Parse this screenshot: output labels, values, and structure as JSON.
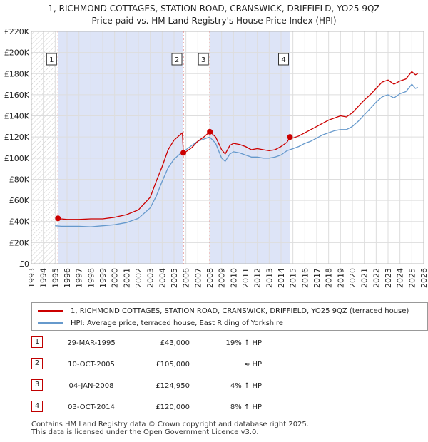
{
  "page_title": {
    "line1": "1, RICHMOND COTTAGES, STATION ROAD, CRANSWICK, DRIFFIELD, YO25 9QZ",
    "line2": "Price paid vs. HM Land Registry's House Price Index (HPI)"
  },
  "legend": {
    "property": "1, RICHMOND COTTAGES, STATION ROAD, CRANSWICK, DRIFFIELD, YO25 9QZ (terraced house)",
    "hpi": "HPI: Average price, terraced house, East Riding of Yorkshire"
  },
  "transactions": [
    {
      "num": "1",
      "date": "29-MAR-1995",
      "price": "£43,000",
      "hpi": "19% ↑ HPI"
    },
    {
      "num": "2",
      "date": "10-OCT-2005",
      "price": "£105,000",
      "hpi": "≈ HPI"
    },
    {
      "num": "3",
      "date": "04-JAN-2008",
      "price": "£124,950",
      "hpi": "4% ↑ HPI"
    },
    {
      "num": "4",
      "date": "03-OCT-2014",
      "price": "£120,000",
      "hpi": "8% ↑ HPI"
    }
  ],
  "footer": {
    "line1": "Contains HM Land Registry data © Crown copyright and database right 2025.",
    "line2": "This data is licensed under the Open Government Licence v3.0."
  },
  "colors": {
    "property": "#cc0000",
    "hpi": "#6699cc",
    "shade": "#dde4f7",
    "grid": "#dddddd",
    "marker": "#cc0000"
  },
  "chart_data": {
    "type": "line",
    "xlim": [
      1993,
      2026
    ],
    "ylim": [
      0,
      220000
    ],
    "y_ticks": [
      {
        "v": 0,
        "label": "£0"
      },
      {
        "v": 20000,
        "label": "£20K"
      },
      {
        "v": 40000,
        "label": "£40K"
      },
      {
        "v": 60000,
        "label": "£60K"
      },
      {
        "v": 80000,
        "label": "£80K"
      },
      {
        "v": 100000,
        "label": "£100K"
      },
      {
        "v": 120000,
        "label": "£120K"
      },
      {
        "v": 140000,
        "label": "£140K"
      },
      {
        "v": 160000,
        "label": "£160K"
      },
      {
        "v": 180000,
        "label": "£180K"
      },
      {
        "v": 200000,
        "label": "£200K"
      },
      {
        "v": 220000,
        "label": "£220K"
      }
    ],
    "x_ticks": [
      "1993",
      "1994",
      "1995",
      "1996",
      "1997",
      "1998",
      "1999",
      "2000",
      "2001",
      "2002",
      "2003",
      "2004",
      "2005",
      "2006",
      "2007",
      "2008",
      "2009",
      "2010",
      "2011",
      "2012",
      "2013",
      "2014",
      "2015",
      "2016",
      "2017",
      "2018",
      "2019",
      "2020",
      "2021",
      "2022",
      "2023",
      "2024",
      "2025",
      "2026"
    ],
    "sales": [
      {
        "label": "1",
        "x": 1995.24,
        "y": 43000
      },
      {
        "label": "2",
        "x": 2005.78,
        "y": 105000
      },
      {
        "label": "3",
        "x": 2008.01,
        "y": 124950
      },
      {
        "label": "4",
        "x": 2014.75,
        "y": 120000
      }
    ],
    "shaded_ranges": [
      [
        1995.24,
        2005.78
      ],
      [
        2008.01,
        2014.75
      ]
    ],
    "series": [
      {
        "name": "1, RICHMOND COTTAGES, STATION ROAD, CRANSWICK, DRIFFIELD, YO25 9QZ (terraced house)",
        "points": [
          [
            1995.24,
            43000
          ],
          [
            1995.5,
            42500
          ],
          [
            1996,
            42000
          ],
          [
            1997,
            42000
          ],
          [
            1998,
            42500
          ],
          [
            1999,
            42500
          ],
          [
            2000,
            44000
          ],
          [
            2001,
            46500
          ],
          [
            2002,
            51000
          ],
          [
            2003,
            63000
          ],
          [
            2003.5,
            78000
          ],
          [
            2004,
            92000
          ],
          [
            2004.5,
            108000
          ],
          [
            2005,
            117000
          ],
          [
            2005.5,
            122000
          ],
          [
            2005.7,
            124000
          ],
          [
            2005.78,
            105000
          ],
          [
            2006,
            106000
          ],
          [
            2006.5,
            110000
          ],
          [
            2007,
            116000
          ],
          [
            2007.5,
            120000
          ],
          [
            2008.01,
            124950
          ],
          [
            2008.5,
            120000
          ],
          [
            2009,
            108000
          ],
          [
            2009.3,
            104000
          ],
          [
            2009.7,
            112000
          ],
          [
            2010,
            114000
          ],
          [
            2010.5,
            113000
          ],
          [
            2011,
            111000
          ],
          [
            2011.5,
            108000
          ],
          [
            2012,
            109000
          ],
          [
            2012.5,
            108000
          ],
          [
            2013,
            107000
          ],
          [
            2013.5,
            108000
          ],
          [
            2014,
            111000
          ],
          [
            2014.5,
            115000
          ],
          [
            2014.75,
            120000
          ],
          [
            2015,
            119000
          ],
          [
            2015.5,
            121000
          ],
          [
            2016,
            124000
          ],
          [
            2016.5,
            127000
          ],
          [
            2017,
            130000
          ],
          [
            2017.5,
            133000
          ],
          [
            2018,
            136000
          ],
          [
            2018.5,
            138000
          ],
          [
            2019,
            140000
          ],
          [
            2019.5,
            139000
          ],
          [
            2020,
            143000
          ],
          [
            2020.5,
            149000
          ],
          [
            2021,
            155000
          ],
          [
            2021.5,
            160000
          ],
          [
            2022,
            166000
          ],
          [
            2022.5,
            172000
          ],
          [
            2023,
            174000
          ],
          [
            2023.5,
            170000
          ],
          [
            2024,
            173000
          ],
          [
            2024.5,
            175000
          ],
          [
            2025,
            182000
          ],
          [
            2025.3,
            179000
          ],
          [
            2025.5,
            180000
          ]
        ]
      },
      {
        "name": "HPI: Average price, terraced house, East Riding of Yorkshire",
        "points": [
          [
            1995,
            36000
          ],
          [
            1995.5,
            35500
          ],
          [
            1996,
            35500
          ],
          [
            1997,
            35500
          ],
          [
            1998,
            35000
          ],
          [
            1999,
            36000
          ],
          [
            2000,
            37000
          ],
          [
            2001,
            39000
          ],
          [
            2002,
            43000
          ],
          [
            2003,
            53000
          ],
          [
            2003.5,
            64000
          ],
          [
            2004,
            78000
          ],
          [
            2004.5,
            91000
          ],
          [
            2005,
            99000
          ],
          [
            2005.5,
            104000
          ],
          [
            2006,
            108000
          ],
          [
            2006.5,
            112000
          ],
          [
            2007,
            116000
          ],
          [
            2007.5,
            118000
          ],
          [
            2008,
            120000
          ],
          [
            2008.5,
            114000
          ],
          [
            2009,
            100000
          ],
          [
            2009.3,
            97000
          ],
          [
            2009.7,
            104000
          ],
          [
            2010,
            106000
          ],
          [
            2010.5,
            105000
          ],
          [
            2011,
            103000
          ],
          [
            2011.5,
            101000
          ],
          [
            2012,
            101000
          ],
          [
            2012.5,
            100000
          ],
          [
            2013,
            100000
          ],
          [
            2013.5,
            101000
          ],
          [
            2014,
            103000
          ],
          [
            2014.5,
            107000
          ],
          [
            2015,
            109000
          ],
          [
            2015.5,
            111000
          ],
          [
            2016,
            114000
          ],
          [
            2016.5,
            116000
          ],
          [
            2017,
            119000
          ],
          [
            2017.5,
            122000
          ],
          [
            2018,
            124000
          ],
          [
            2018.5,
            126000
          ],
          [
            2019,
            127000
          ],
          [
            2019.5,
            127000
          ],
          [
            2020,
            130000
          ],
          [
            2020.5,
            135000
          ],
          [
            2021,
            141000
          ],
          [
            2021.5,
            147000
          ],
          [
            2022,
            153000
          ],
          [
            2022.5,
            158000
          ],
          [
            2023,
            160000
          ],
          [
            2023.5,
            157000
          ],
          [
            2024,
            161000
          ],
          [
            2024.5,
            163000
          ],
          [
            2025,
            170000
          ],
          [
            2025.3,
            166000
          ],
          [
            2025.5,
            167000
          ]
        ]
      }
    ]
  }
}
